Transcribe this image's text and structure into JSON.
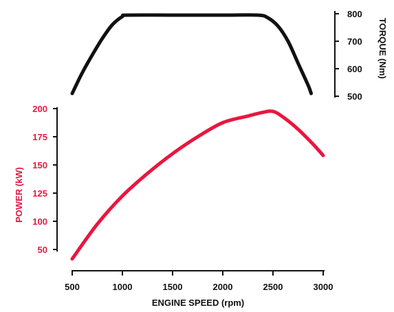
{
  "chart_data": [
    {
      "type": "line",
      "title": "",
      "ylabel": "TORQUE (Nm)",
      "ylim": [
        500,
        800
      ],
      "yticks": [
        "800",
        "700",
        "600",
        "500"
      ],
      "color": "#111111",
      "axis_side": "right",
      "series": [
        {
          "name": "",
          "x": [
            500,
            600,
            700,
            800,
            900,
            1000,
            1050,
            1500,
            2000,
            2350,
            2450,
            2550,
            2650,
            2750,
            2850,
            2880
          ],
          "y": [
            510,
            585,
            650,
            710,
            760,
            790,
            795,
            795,
            795,
            795,
            785,
            755,
            700,
            620,
            540,
            510
          ]
        }
      ]
    },
    {
      "type": "line",
      "title": "",
      "xlabel": "ENGINE SPEED (rpm)",
      "ylabel": "POWER (kW)",
      "xlim": [
        500,
        3000
      ],
      "ylim": [
        50,
        200
      ],
      "xticks": [
        "500",
        "1000",
        "1500",
        "2000",
        "2500",
        "3000"
      ],
      "yticks": [
        "200",
        "175",
        "150",
        "125",
        "100",
        "50"
      ],
      "color": "#e8173f",
      "axis_side": "left",
      "series": [
        {
          "name": "",
          "x": [
            500,
            750,
            1000,
            1250,
            1500,
            1750,
            2000,
            2250,
            2400,
            2500,
            2600,
            2750,
            2900,
            3000
          ],
          "y": [
            40,
            77,
            107,
            131,
            152,
            170,
            185,
            192,
            196,
            197,
            191,
            178,
            162,
            150
          ]
        }
      ]
    }
  ]
}
